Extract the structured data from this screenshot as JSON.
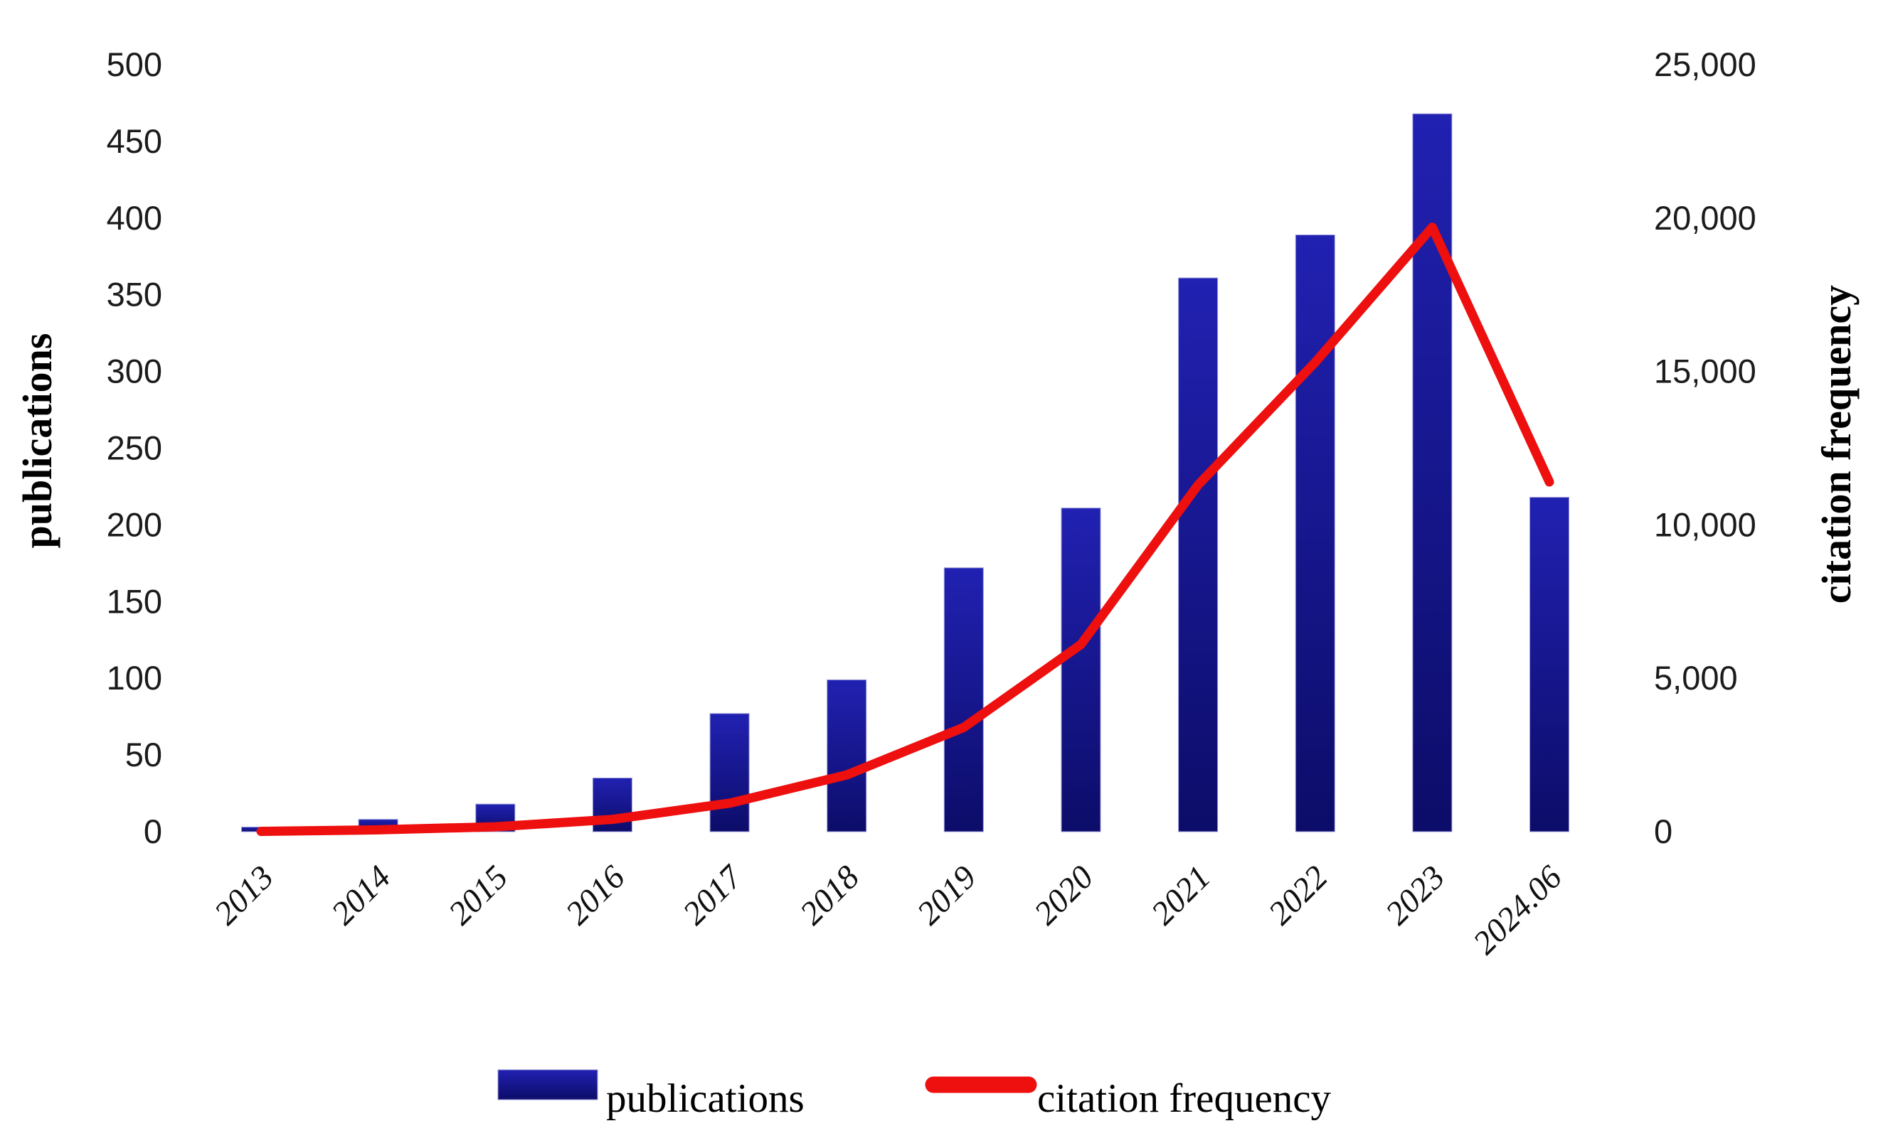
{
  "chart_data": {
    "type": "bar",
    "subtype": "dual-axis-bar-line-combo",
    "categories": [
      "2013",
      "2014",
      "2015",
      "2016",
      "2017",
      "2018",
      "2019",
      "2020",
      "2021",
      "2022",
      "2023",
      "2024.06"
    ],
    "series": [
      {
        "name": "publications",
        "type": "bar",
        "axis": "left",
        "values": [
          3,
          8,
          18,
          35,
          77,
          99,
          172,
          211,
          361,
          389,
          468,
          218
        ]
      },
      {
        "name": "citation frequency",
        "type": "line",
        "axis": "right",
        "values": [
          10,
          60,
          160,
          400,
          930,
          1850,
          3400,
          6100,
          11300,
          15300,
          19700,
          11400
        ]
      }
    ],
    "left_axis": {
      "label": "publications",
      "min": 0,
      "max": 500,
      "tick_step": 50,
      "ticks": [
        {
          "v": 0,
          "label": "0"
        },
        {
          "v": 50,
          "label": "50"
        },
        {
          "v": 100,
          "label": "100"
        },
        {
          "v": 150,
          "label": "150"
        },
        {
          "v": 200,
          "label": "200"
        },
        {
          "v": 250,
          "label": "250"
        },
        {
          "v": 300,
          "label": "300"
        },
        {
          "v": 350,
          "label": "350"
        },
        {
          "v": 400,
          "label": "400"
        },
        {
          "v": 450,
          "label": "450"
        },
        {
          "v": 500,
          "label": "500"
        }
      ]
    },
    "right_axis": {
      "label": "citation frequency",
      "min": 0,
      "max": 25000,
      "tick_step": 5000,
      "ticks": [
        {
          "v": 0,
          "label": "0"
        },
        {
          "v": 5000,
          "label": "5,000"
        },
        {
          "v": 10000,
          "label": "10,000"
        },
        {
          "v": 15000,
          "label": "15,000"
        },
        {
          "v": 20000,
          "label": "20,000"
        },
        {
          "v": 25000,
          "label": "25,000"
        }
      ]
    },
    "legend": {
      "position": "bottom-center",
      "items": [
        {
          "label": "publications",
          "marker": "bar-swatch"
        },
        {
          "label": "citation frequency",
          "marker": "line-swatch"
        }
      ]
    },
    "grid": "off",
    "colors": {
      "bar_gradient_top": "#2121b2",
      "bar_gradient_bottom": "#0c0c69",
      "bar_edge": "#9a9ada",
      "line": "#ee0f0f",
      "text": "#000000",
      "background": "#ffffff"
    }
  }
}
